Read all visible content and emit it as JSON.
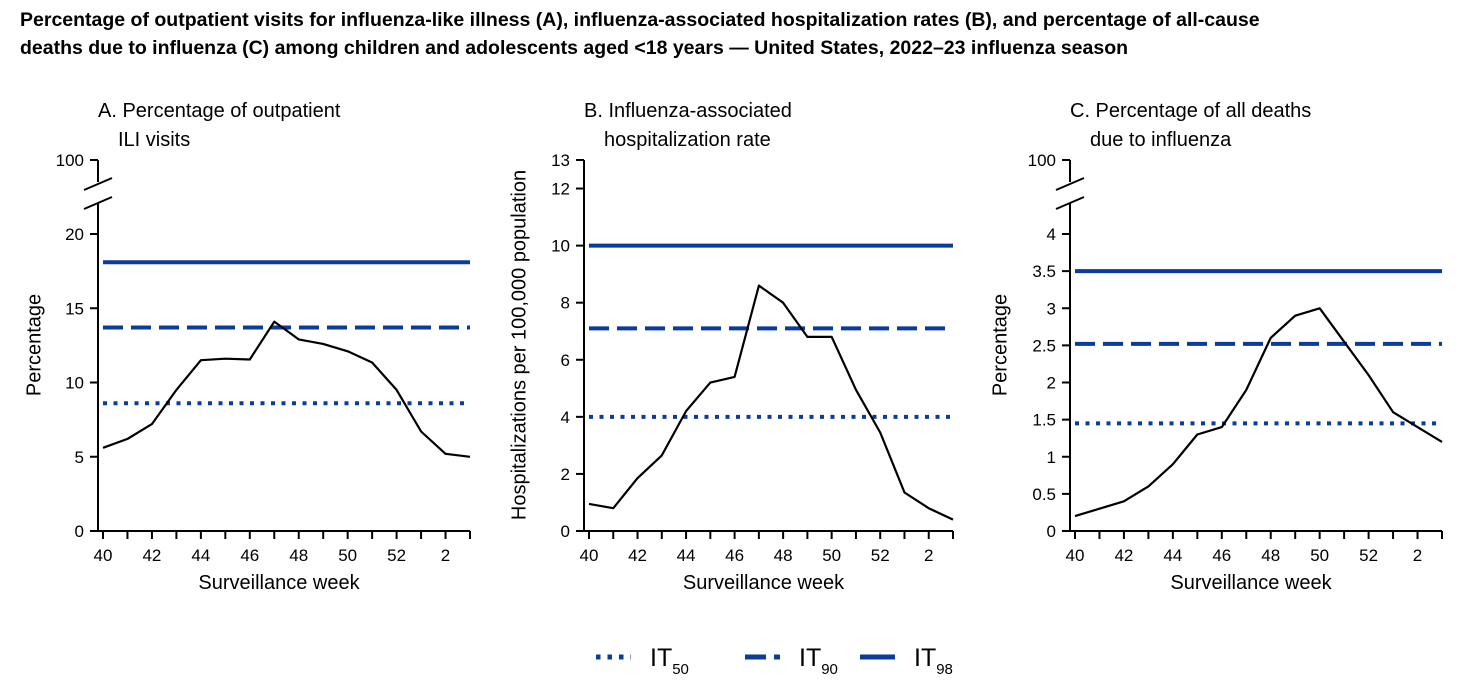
{
  "title_line1": "Percentage of outpatient visits for influenza-like illness (A), influenza-associated hospitalization rates (B), and percentage of all-cause",
  "title_line2": "deaths due to influenza (C) among children and adolescents aged <18 years — United States, 2022–23 influenza season",
  "colors": {
    "threshold": "#0B3C9A",
    "observed": "#000000"
  },
  "legend": [
    {
      "key": "it50",
      "label": "IT",
      "sub": "50",
      "style": "dotted"
    },
    {
      "key": "it90",
      "label": "IT",
      "sub": "90",
      "style": "dashed"
    },
    {
      "key": "it98",
      "label": "IT",
      "sub": "98",
      "style": "solid"
    }
  ],
  "chart_data": [
    {
      "type": "line",
      "panel": "A",
      "title_lines": [
        "A. Percentage of outpatient",
        "ILI visits"
      ],
      "xlabel": "Surveillance week",
      "ylabel": "Percentage",
      "x": [
        40,
        41,
        42,
        43,
        44,
        45,
        46,
        47,
        48,
        49,
        50,
        51,
        52,
        1,
        2,
        3
      ],
      "xticks": [
        "40",
        "42",
        "44",
        "46",
        "48",
        "50",
        "52",
        "2"
      ],
      "yticks": [
        "0",
        "5",
        "10",
        "15",
        "20",
        "100"
      ],
      "ylim": [
        0,
        20
      ],
      "axis_break": true,
      "series": [
        {
          "values": [
            5.6,
            6.2,
            7.2,
            9.5,
            11.5,
            11.6,
            11.55,
            14.1,
            12.9,
            12.6,
            12.1,
            11.35,
            9.5,
            6.7,
            5.2,
            5.0
          ]
        }
      ],
      "thresholds": {
        "it50": 8.6,
        "it90": 13.7,
        "it98": 18.1
      }
    },
    {
      "type": "line",
      "panel": "B",
      "title_lines": [
        "B. Influenza-associated",
        "hospitalization rate"
      ],
      "xlabel": "Surveillance week",
      "ylabel": "Hospitalizations per 100,000 population",
      "x": [
        40,
        41,
        42,
        43,
        44,
        45,
        46,
        47,
        48,
        49,
        50,
        51,
        52,
        1,
        2,
        3
      ],
      "xticks": [
        "40",
        "42",
        "44",
        "46",
        "48",
        "50",
        "52",
        "2"
      ],
      "yticks": [
        "0",
        "2",
        "4",
        "6",
        "8",
        "10",
        "12",
        "13"
      ],
      "ylim": [
        0,
        13
      ],
      "axis_break": false,
      "series": [
        {
          "values": [
            0.95,
            0.8,
            1.85,
            2.65,
            4.2,
            5.2,
            5.4,
            8.6,
            8.0,
            6.8,
            6.8,
            4.95,
            3.45,
            1.35,
            0.8,
            0.4
          ]
        }
      ],
      "thresholds": {
        "it50": 4.0,
        "it90": 7.1,
        "it98": 10.0
      }
    },
    {
      "type": "line",
      "panel": "C",
      "title_lines": [
        "C. Percentage of all deaths",
        "due to influenza"
      ],
      "xlabel": "Surveillance week",
      "ylabel": "Percentage",
      "x": [
        40,
        41,
        42,
        43,
        44,
        45,
        46,
        47,
        48,
        49,
        50,
        51,
        52,
        1,
        2,
        3
      ],
      "xticks": [
        "40",
        "42",
        "44",
        "46",
        "48",
        "50",
        "52",
        "2"
      ],
      "yticks": [
        "0",
        "0.5",
        "1",
        "1.5",
        "2",
        "2.5",
        "3",
        "3.5",
        "4",
        "100"
      ],
      "ylim": [
        0,
        4
      ],
      "axis_break": true,
      "series": [
        {
          "values": [
            0.2,
            0.3,
            0.4,
            0.6,
            0.9,
            1.3,
            1.4,
            1.9,
            2.6,
            2.9,
            3.0,
            2.55,
            2.1,
            1.6,
            1.4,
            1.2
          ]
        }
      ],
      "thresholds": {
        "it50": 1.45,
        "it90": 2.52,
        "it98": 3.5
      }
    }
  ]
}
